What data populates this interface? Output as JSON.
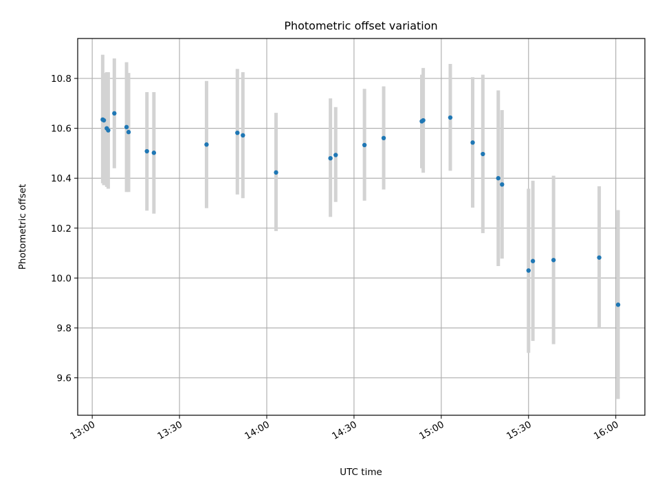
{
  "chart_data": {
    "type": "scatter",
    "title": "Photometric offset variation",
    "xlabel": "UTC time",
    "ylabel": "Photometric offset",
    "xlim": [
      "12:55",
      "16:10"
    ],
    "ylim": [
      9.45,
      10.96
    ],
    "x_ticks": [
      "13:00",
      "13:30",
      "14:00",
      "14:30",
      "15:00",
      "15:30",
      "16:00"
    ],
    "y_ticks": [
      "9.6",
      "9.8",
      "10.0",
      "10.2",
      "10.4",
      "10.6",
      "10.8"
    ],
    "grid": true,
    "error_bar_color": "#d3d3d3",
    "marker_color": "#1f77b4",
    "points": [
      {
        "x": "13:03.6",
        "y": 10.635,
        "err_low": 10.38,
        "err_high": 10.895
      },
      {
        "x": "13:04.0",
        "y": 10.632,
        "err_low": 10.372,
        "err_high": 10.822
      },
      {
        "x": "13:05.0",
        "y": 10.6,
        "err_low": 10.365,
        "err_high": 10.825
      },
      {
        "x": "13:05.5",
        "y": 10.592,
        "err_low": 10.358,
        "err_high": 10.825
      },
      {
        "x": "13:07.6",
        "y": 10.66,
        "err_low": 10.44,
        "err_high": 10.88
      },
      {
        "x": "13:11.8",
        "y": 10.605,
        "err_low": 10.345,
        "err_high": 10.865
      },
      {
        "x": "13:12.5",
        "y": 10.585,
        "err_low": 10.345,
        "err_high": 10.822
      },
      {
        "x": "13:18.8",
        "y": 10.508,
        "err_low": 10.27,
        "err_high": 10.745
      },
      {
        "x": "13:21.2",
        "y": 10.502,
        "err_low": 10.258,
        "err_high": 10.745
      },
      {
        "x": "13:39.3",
        "y": 10.535,
        "err_low": 10.28,
        "err_high": 10.79
      },
      {
        "x": "13:49.9",
        "y": 10.582,
        "err_low": 10.335,
        "err_high": 10.838
      },
      {
        "x": "13:51.8",
        "y": 10.572,
        "err_low": 10.32,
        "err_high": 10.825
      },
      {
        "x": "14:03.2",
        "y": 10.423,
        "err_low": 10.188,
        "err_high": 10.662
      },
      {
        "x": "14:21.9",
        "y": 10.48,
        "err_low": 10.245,
        "err_high": 10.72
      },
      {
        "x": "14:23.7",
        "y": 10.493,
        "err_low": 10.305,
        "err_high": 10.685
      },
      {
        "x": "14:33.6",
        "y": 10.533,
        "err_low": 10.31,
        "err_high": 10.758
      },
      {
        "x": "14:40.2",
        "y": 10.561,
        "err_low": 10.355,
        "err_high": 10.768
      },
      {
        "x": "14:53.3",
        "y": 10.628,
        "err_low": 10.44,
        "err_high": 10.815
      },
      {
        "x": "14:53.8",
        "y": 10.632,
        "err_low": 10.422,
        "err_high": 10.842
      },
      {
        "x": "15:03.1",
        "y": 10.643,
        "err_low": 10.43,
        "err_high": 10.858
      },
      {
        "x": "15:10.8",
        "y": 10.543,
        "err_low": 10.282,
        "err_high": 10.805
      },
      {
        "x": "15:14.3",
        "y": 10.497,
        "err_low": 10.18,
        "err_high": 10.815
      },
      {
        "x": "15:19.6",
        "y": 10.4,
        "err_low": 10.048,
        "err_high": 10.752
      },
      {
        "x": "15:20.9",
        "y": 10.375,
        "err_low": 10.078,
        "err_high": 10.673
      },
      {
        "x": "15:30.0",
        "y": 10.03,
        "err_low": 9.7,
        "err_high": 10.358
      },
      {
        "x": "15:31.5",
        "y": 10.068,
        "err_low": 9.748,
        "err_high": 10.39
      },
      {
        "x": "15:38.6",
        "y": 10.072,
        "err_low": 9.735,
        "err_high": 10.41
      },
      {
        "x": "15:54.3",
        "y": 10.082,
        "err_low": 9.8,
        "err_high": 10.368
      },
      {
        "x": "16:00.8",
        "y": 9.893,
        "err_low": 9.515,
        "err_high": 10.272
      }
    ]
  }
}
